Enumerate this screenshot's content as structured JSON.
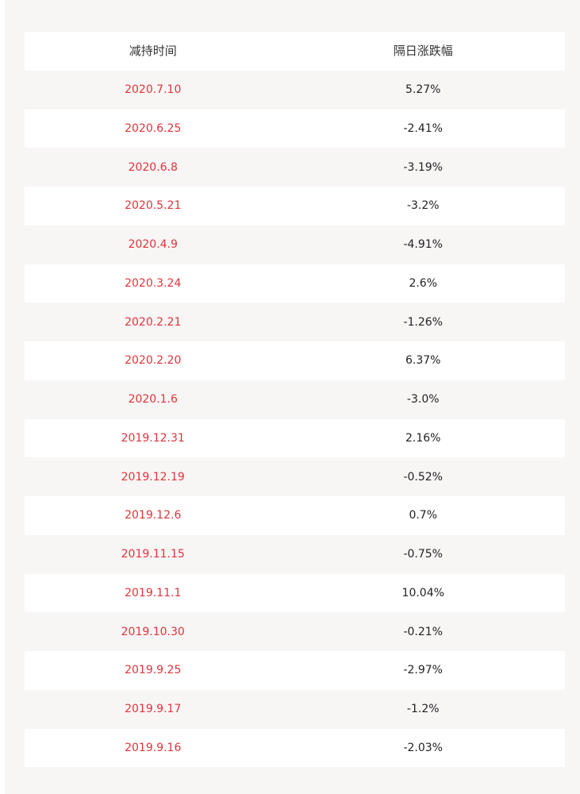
{
  "table": {
    "headers": [
      "减持时间",
      "隔日涨跌幅"
    ],
    "rows": [
      [
        "2020.7.10",
        "5.27%"
      ],
      [
        "2020.6.25",
        "-2.41%"
      ],
      [
        "2020.6.8",
        "-3.19%"
      ],
      [
        "2020.5.21",
        "-3.2%"
      ],
      [
        "2020.4.9",
        "-4.91%"
      ],
      [
        "2020.3.24",
        "2.6%"
      ],
      [
        "2020.2.21",
        "-1.26%"
      ],
      [
        "2020.2.20",
        "6.37%"
      ],
      [
        "2020.1.6",
        "-3.0%"
      ],
      [
        "2019.12.31",
        "2.16%"
      ],
      [
        "2019.12.19",
        "-0.52%"
      ],
      [
        "2019.12.6",
        "0.7%"
      ],
      [
        "2019.11.15",
        "-0.75%"
      ],
      [
        "2019.11.1",
        "10.04%"
      ],
      [
        "2019.10.30",
        "-0.21%"
      ],
      [
        "2019.9.25",
        "-2.97%"
      ],
      [
        "2019.9.17",
        "-1.2%"
      ],
      [
        "2019.9.16",
        "-2.03%"
      ]
    ]
  },
  "colors": {
    "date_text": "#e0343a",
    "value_text": "#222222",
    "stripe_white": "#ffffff",
    "stripe_shade": "#f8f5f5"
  }
}
